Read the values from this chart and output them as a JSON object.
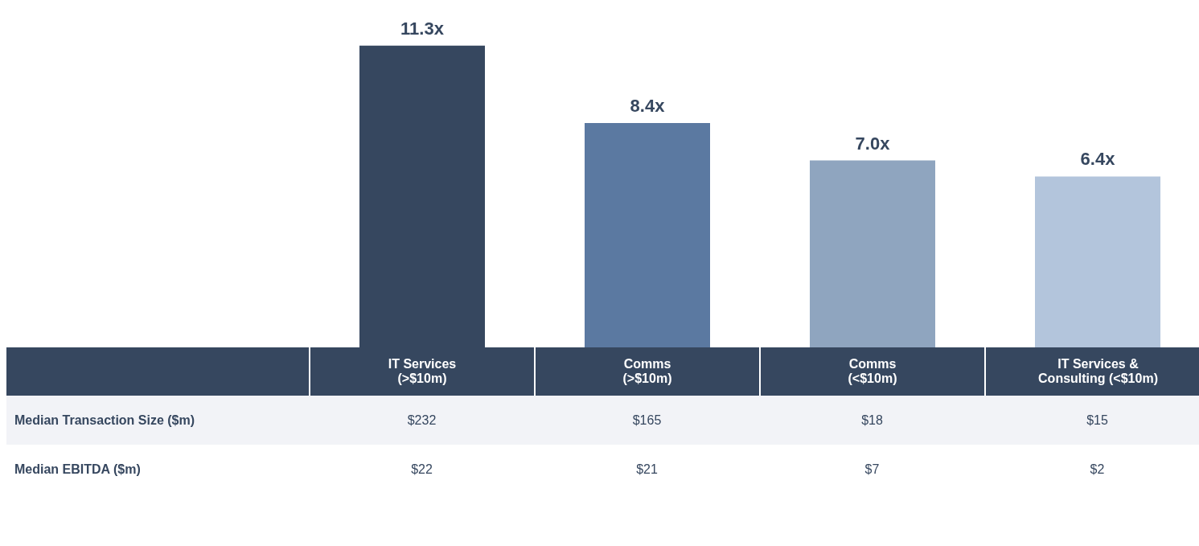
{
  "chart_data": {
    "type": "bar",
    "categories": [
      "IT Services\n(>$10m)",
      "Comms\n(>$10m)",
      "Comms\n(<$10m)",
      "IT Services &\nConsulting (<$10m)"
    ],
    "values": [
      11.3,
      8.4,
      7.0,
      6.4
    ],
    "colors": [
      "#36475f",
      "#5b79a1",
      "#8fa5bf",
      "#b3c5dc"
    ],
    "value_labels": [
      "11.3x",
      "8.4x",
      "7.0x",
      "6.4x"
    ],
    "annotations": [
      "Median Transaction Size ($m)",
      "$232",
      "$165",
      "$18",
      "$15",
      "Median EBITDA ($m)",
      "$22",
      "$21",
      "$7",
      "$2"
    ]
  }
}
